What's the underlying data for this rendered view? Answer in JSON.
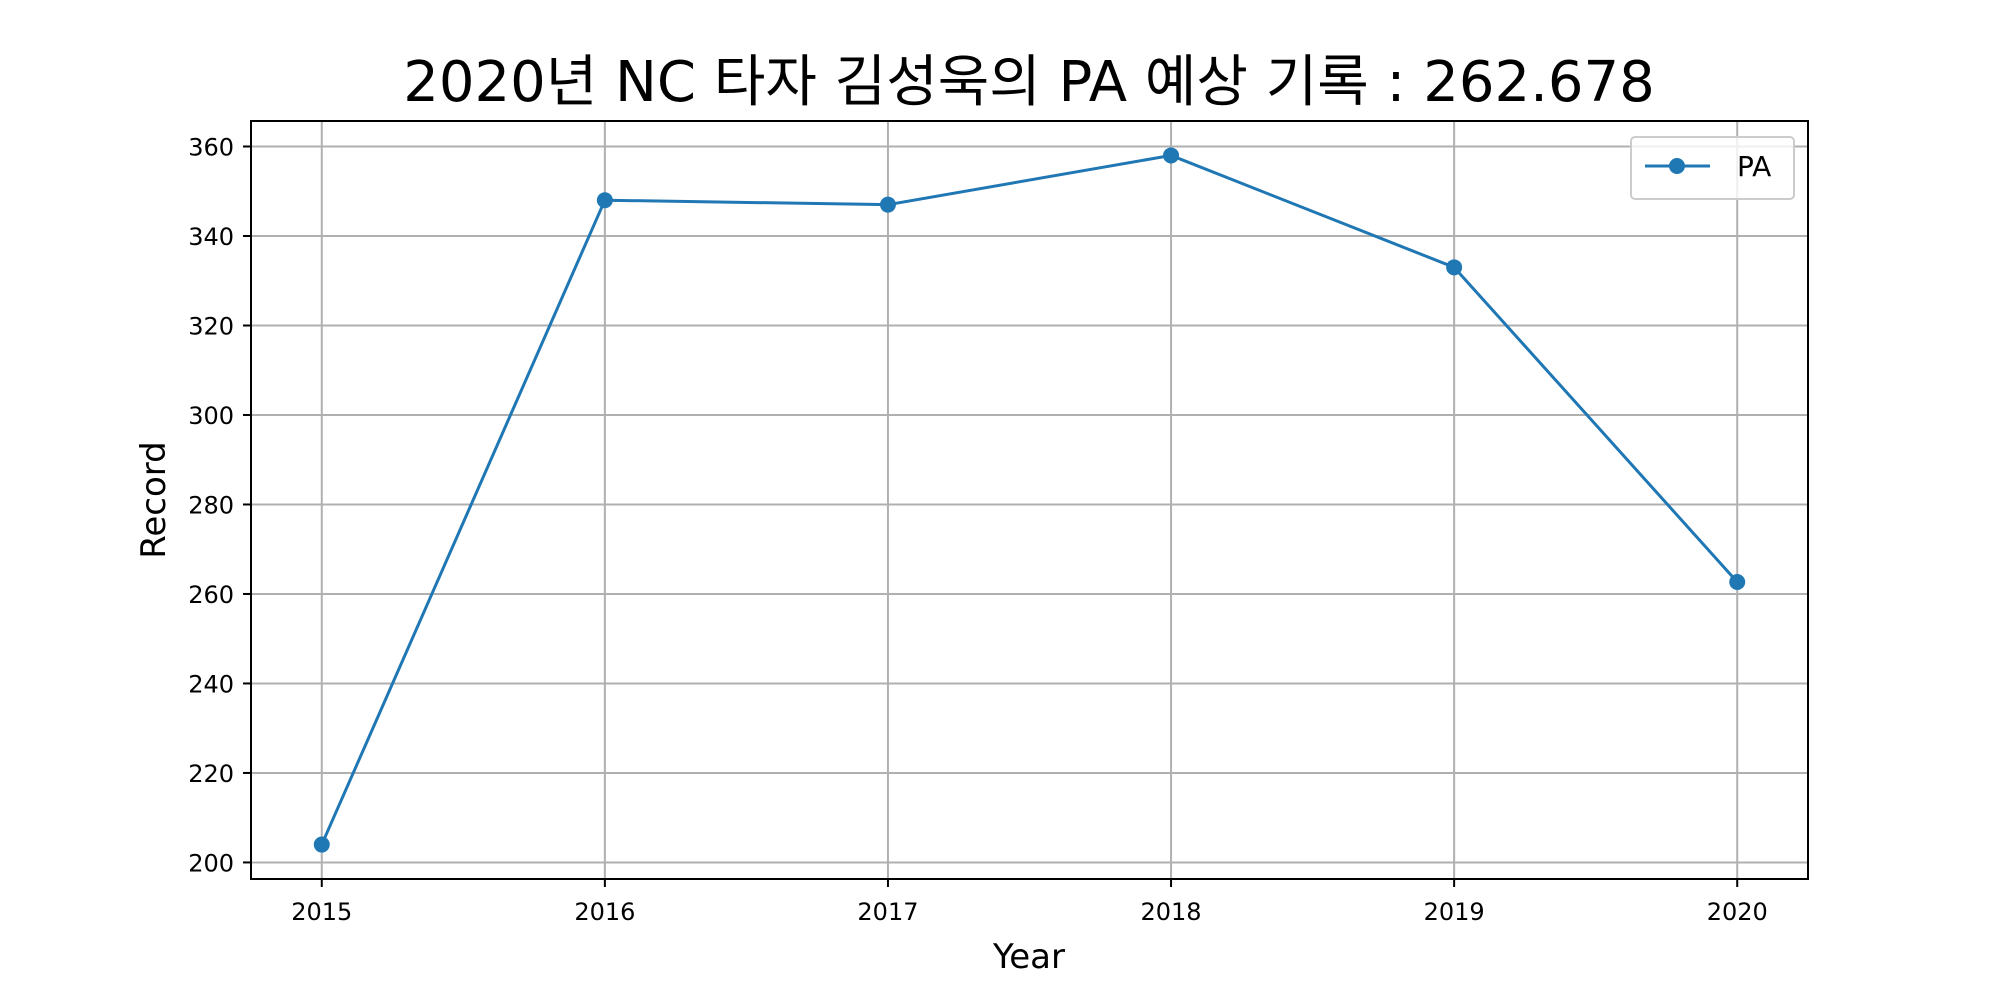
{
  "chart_data": {
    "type": "line",
    "title": "2020년 NC 타자 김성욱의 PA 예상 기록 : 262.678",
    "xlabel": "Year",
    "ylabel": "Record",
    "x": [
      2015,
      2016,
      2017,
      2018,
      2019,
      2020
    ],
    "series": [
      {
        "name": "PA",
        "values": [
          204,
          348,
          347,
          358,
          333,
          262.678
        ],
        "color": "#1f77b4",
        "marker": "circle"
      }
    ],
    "xlim": [
      2014.75,
      2020.25
    ],
    "ylim": [
      196.3,
      365.7
    ],
    "yticks": [
      200,
      220,
      240,
      260,
      280,
      300,
      320,
      340,
      360
    ],
    "xticks": [
      2015,
      2016,
      2017,
      2018,
      2019,
      2020
    ],
    "grid": true,
    "legend_position": "top-right"
  }
}
